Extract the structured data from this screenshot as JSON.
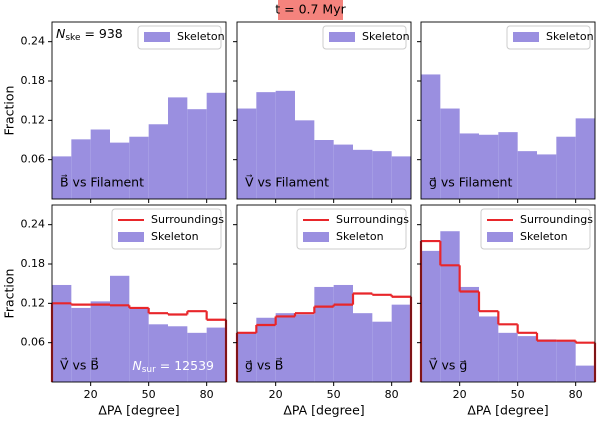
{
  "title": "t = 0.7 Myr",
  "chart_data": [
    {
      "type": "histogram",
      "ylabel": "Fraction",
      "label": "B⃗ vs Filament",
      "annotation": {
        "main": "N",
        "sub": "ske",
        "after": " = 938",
        "color": "#000000"
      },
      "bins": [
        0,
        10,
        20,
        30,
        40,
        50,
        60,
        70,
        80,
        90
      ],
      "series": [
        {
          "name": "Skeleton",
          "color": "#9a8fe0",
          "histtype": "stepfilled",
          "values": [
            0.065,
            0.091,
            0.106,
            0.086,
            0.095,
            0.114,
            0.155,
            0.137,
            0.162
          ]
        }
      ],
      "xlim": [
        0,
        90
      ],
      "xticks": [
        20,
        50,
        80
      ],
      "ylim": [
        0,
        0.27
      ],
      "yticks": [
        0.06,
        0.12,
        0.18,
        0.24
      ],
      "legend": "upper right"
    },
    {
      "type": "histogram",
      "label": "V⃗ vs Filament",
      "bins": [
        0,
        10,
        20,
        30,
        40,
        50,
        60,
        70,
        80,
        90
      ],
      "series": [
        {
          "name": "Skeleton",
          "color": "#9a8fe0",
          "histtype": "stepfilled",
          "values": [
            0.138,
            0.163,
            0.165,
            0.12,
            0.09,
            0.083,
            0.075,
            0.073,
            0.065
          ]
        }
      ],
      "xlim": [
        0,
        90
      ],
      "xticks": [
        20,
        50,
        80
      ],
      "ylim": [
        0,
        0.27
      ],
      "yticks": [
        0.06,
        0.12,
        0.18,
        0.24
      ],
      "legend": "upper right"
    },
    {
      "type": "histogram",
      "label": "g⃗ vs Filament",
      "bins": [
        0,
        10,
        20,
        30,
        40,
        50,
        60,
        70,
        80,
        90
      ],
      "series": [
        {
          "name": "Skeleton",
          "color": "#9a8fe0",
          "histtype": "stepfilled",
          "values": [
            0.19,
            0.138,
            0.1,
            0.098,
            0.102,
            0.073,
            0.068,
            0.095,
            0.123
          ]
        }
      ],
      "xlim": [
        0,
        90
      ],
      "xticks": [
        20,
        50,
        80
      ],
      "ylim": [
        0,
        0.27
      ],
      "yticks": [
        0.06,
        0.12,
        0.18,
        0.24
      ],
      "legend": "upper right"
    },
    {
      "type": "histogram",
      "ylabel": "Fraction",
      "xlabel": "ΔPA [degree]",
      "label": "V⃗ vs B⃗",
      "annotation": {
        "main": "N",
        "sub": "sur",
        "after": " = 12539",
        "color": "#ffffff"
      },
      "bins": [
        0,
        10,
        20,
        30,
        40,
        50,
        60,
        70,
        80,
        90
      ],
      "series": [
        {
          "name": "Surroundings",
          "color": "#e8262a",
          "histtype": "step",
          "values": [
            0.12,
            0.118,
            0.118,
            0.117,
            0.113,
            0.105,
            0.103,
            0.108,
            0.095
          ]
        },
        {
          "name": "Skeleton",
          "color": "#9a8fe0",
          "histtype": "stepfilled",
          "values": [
            0.148,
            0.113,
            0.123,
            0.162,
            0.113,
            0.088,
            0.085,
            0.075,
            0.083
          ]
        }
      ],
      "xlim": [
        0,
        90
      ],
      "xticks": [
        20,
        50,
        80
      ],
      "ylim": [
        0,
        0.27
      ],
      "yticks": [
        0.06,
        0.12,
        0.18,
        0.24
      ],
      "legend": "upper right"
    },
    {
      "type": "histogram",
      "xlabel": "ΔPA [degree]",
      "label": "g⃗ vs B⃗",
      "bins": [
        0,
        10,
        20,
        30,
        40,
        50,
        60,
        70,
        80,
        90
      ],
      "series": [
        {
          "name": "Surroundings",
          "color": "#e8262a",
          "histtype": "step",
          "values": [
            0.075,
            0.087,
            0.1,
            0.105,
            0.115,
            0.118,
            0.135,
            0.133,
            0.13
          ]
        },
        {
          "name": "Skeleton",
          "color": "#9a8fe0",
          "histtype": "stepfilled",
          "values": [
            0.075,
            0.098,
            0.105,
            0.103,
            0.145,
            0.148,
            0.105,
            0.092,
            0.118
          ]
        }
      ],
      "xlim": [
        0,
        90
      ],
      "xticks": [
        20,
        50,
        80
      ],
      "ylim": [
        0,
        0.27
      ],
      "yticks": [
        0.06,
        0.12,
        0.18,
        0.24
      ],
      "legend": "upper right"
    },
    {
      "type": "histogram",
      "xlabel": "ΔPA [degree]",
      "label": "V⃗ vs g⃗",
      "bins": [
        0,
        10,
        20,
        30,
        40,
        50,
        60,
        70,
        80,
        90
      ],
      "series": [
        {
          "name": "Surroundings",
          "color": "#e8262a",
          "histtype": "step",
          "values": [
            0.215,
            0.178,
            0.138,
            0.108,
            0.088,
            0.075,
            0.063,
            0.063,
            0.06
          ]
        },
        {
          "name": "Skeleton",
          "color": "#9a8fe0",
          "histtype": "stepfilled",
          "values": [
            0.2,
            0.23,
            0.145,
            0.1,
            0.075,
            0.07,
            0.065,
            0.063,
            0.025
          ]
        }
      ],
      "xlim": [
        0,
        90
      ],
      "xticks": [
        20,
        50,
        80
      ],
      "ylim": [
        0,
        0.27
      ],
      "yticks": [
        0.06,
        0.12,
        0.18,
        0.24
      ],
      "legend": "upper right"
    }
  ]
}
